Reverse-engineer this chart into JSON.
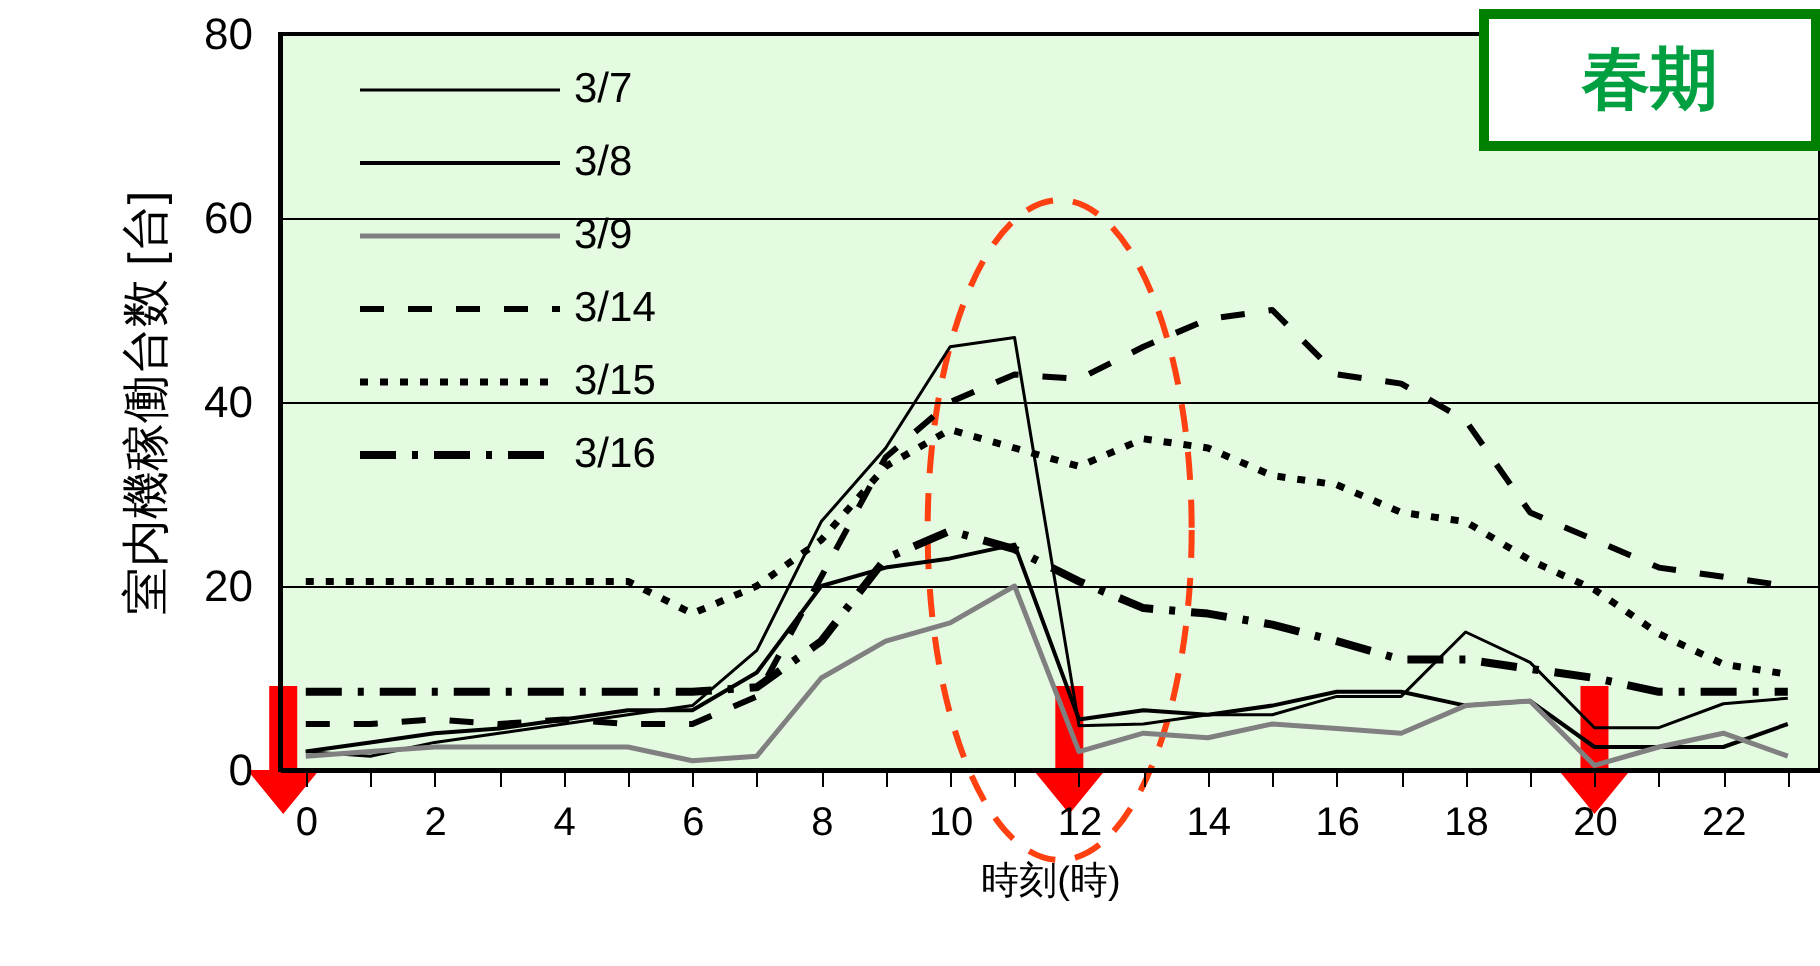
{
  "chart_data": {
    "type": "line",
    "xlabel": "時刻(時)",
    "ylabel": "室内機稼働台数 [台]",
    "annotations": [
      "春期"
    ],
    "x": [
      0,
      1,
      2,
      3,
      4,
      5,
      6,
      7,
      8,
      9,
      10,
      11,
      12,
      13,
      14,
      15,
      16,
      17,
      18,
      19,
      20,
      21,
      22,
      23
    ],
    "xlim": [
      -0.4,
      23.5
    ],
    "xticks": [
      0,
      {
        "value": 1,
        "label": null
      },
      2,
      {
        "value": 3,
        "label": null
      },
      4,
      {
        "value": 5,
        "label": null
      },
      6,
      {
        "value": 7,
        "label": null
      },
      8,
      {
        "value": 9,
        "label": null
      },
      10,
      {
        "value": 11,
        "label": null
      },
      12,
      {
        "value": 13,
        "label": null
      },
      14,
      {
        "value": 15,
        "label": null
      },
      16,
      {
        "value": 17,
        "label": null
      },
      18,
      {
        "value": 19,
        "label": null
      },
      20,
      {
        "value": 21,
        "label": null
      },
      22,
      {
        "value": 23,
        "label": null
      }
    ],
    "ylim": [
      0,
      80
    ],
    "yticks": [
      0,
      20,
      40,
      60,
      80
    ],
    "grid": "y",
    "legend": "top left",
    "marker": "none",
    "series": [
      {
        "name": "3/7",
        "color": "#000000",
        "line_style": "solid",
        "values": [
          2,
          1.5,
          3,
          4,
          5,
          6,
          7,
          13,
          27,
          35,
          46,
          47,
          4.8,
          5,
          6,
          6,
          8,
          8,
          15,
          11.7,
          4.6,
          4.6,
          7.2,
          7.8
        ]
      },
      {
        "name": "3/8",
        "color": "#000000",
        "line_style": "solid",
        "values": [
          2,
          3,
          4,
          4.5,
          5.5,
          6.5,
          6.5,
          10.6,
          20,
          22,
          23,
          24.5,
          5.5,
          6.5,
          6,
          7,
          8.5,
          8.5,
          7,
          7.5,
          2.5,
          2.5,
          2.5,
          5
        ]
      },
      {
        "name": "3/9",
        "color": "#808080",
        "line_style": "solid",
        "values": [
          1.5,
          2,
          2.5,
          2.5,
          2.5,
          2.5,
          1,
          1.5,
          10,
          14,
          16,
          20,
          2,
          4,
          3.5,
          5,
          4.5,
          4,
          7,
          7.5,
          0.5,
          2.5,
          4,
          1.5
        ]
      },
      {
        "name": "3/14",
        "color": "#000000",
        "line_style": "dashed",
        "values": [
          5,
          5,
          5.5,
          5,
          5.5,
          5,
          5,
          8,
          21,
          34,
          40,
          43,
          42.5,
          46,
          49,
          50,
          43,
          42,
          38,
          28,
          25,
          22,
          21,
          20
        ]
      },
      {
        "name": "3/15",
        "color": "#000000",
        "line_style": "dotted",
        "values": [
          20.5,
          20.5,
          20.5,
          20.5,
          20.5,
          20.5,
          17,
          20,
          25,
          33,
          37,
          35,
          33,
          36,
          35,
          32,
          31,
          28,
          27,
          22.8,
          19.6,
          14.8,
          11.5,
          10.4
        ]
      },
      {
        "name": "3/16",
        "color": "#000000",
        "line_style": "dashdot",
        "values": [
          8.5,
          8.5,
          8.5,
          8.5,
          8.5,
          8.5,
          8.5,
          9,
          14,
          23,
          26,
          24,
          20.5,
          17.6,
          17,
          15.8,
          14,
          12,
          12,
          11,
          10,
          8.5,
          8.5,
          8.5
        ]
      }
    ]
  }
}
